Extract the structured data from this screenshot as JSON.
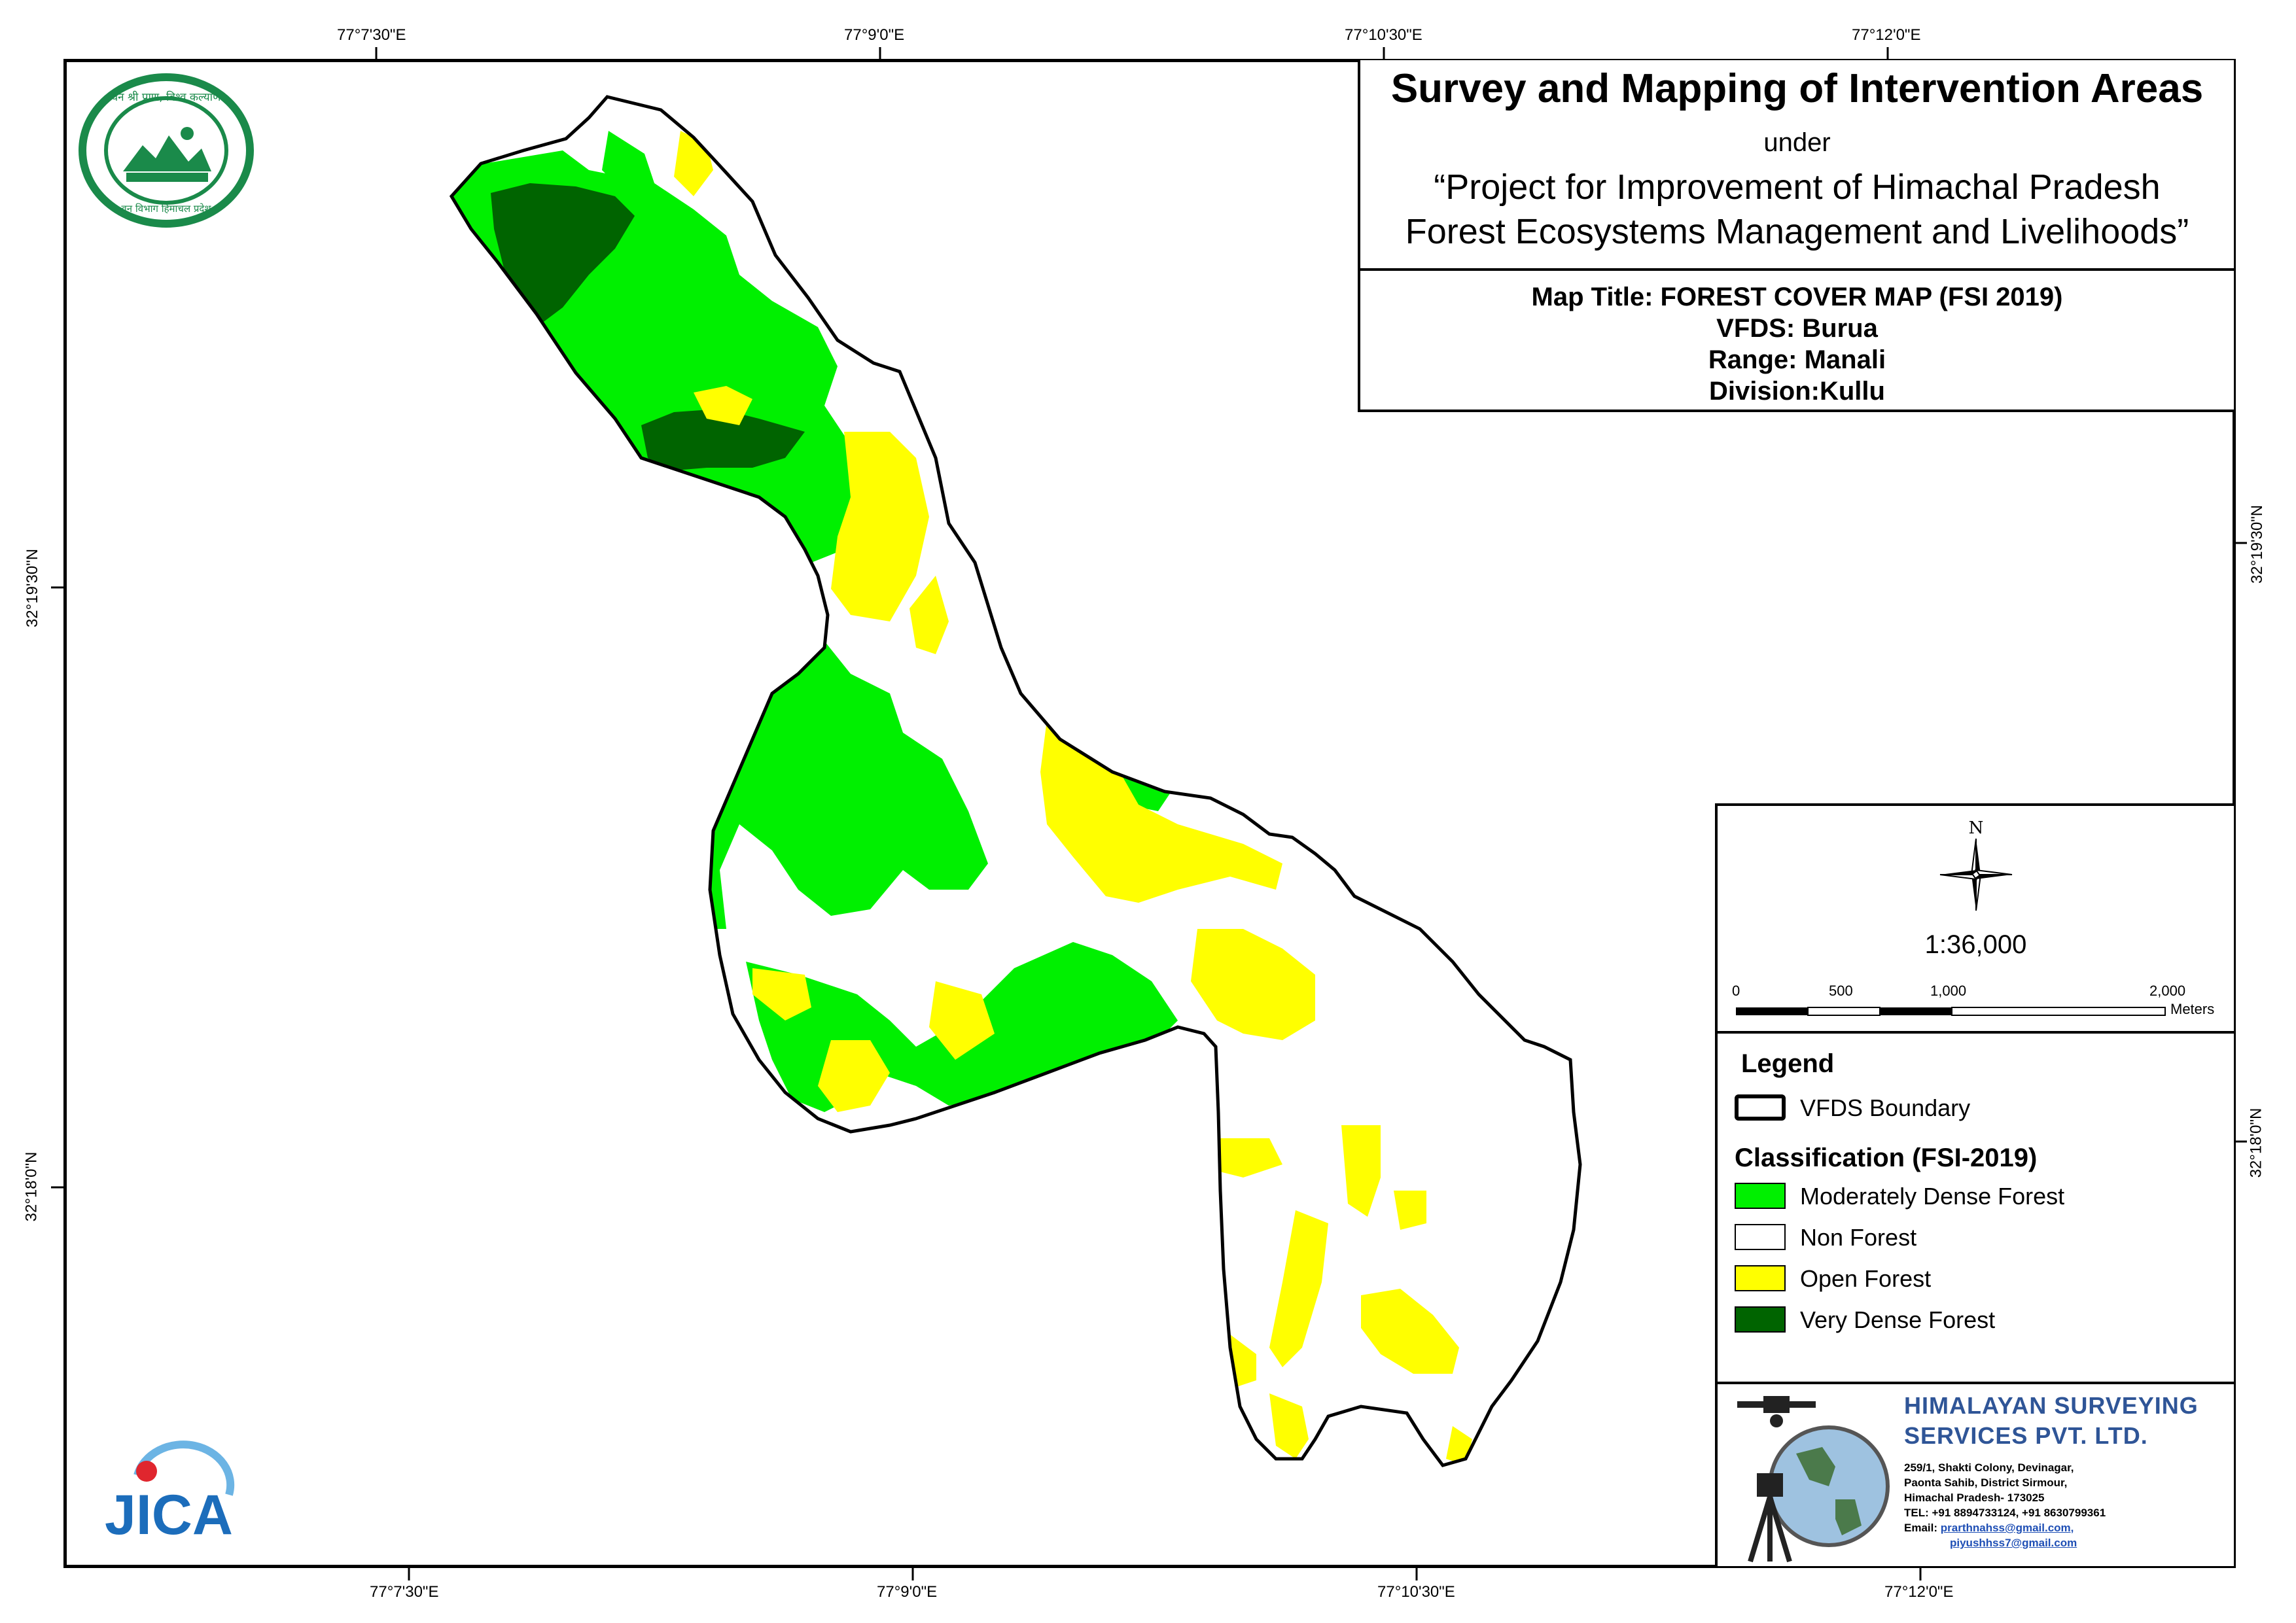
{
  "header": {
    "title": "Survey and Mapping of Intervention Areas",
    "under": "under",
    "project_line1": "“Project for Improvement of Himachal Pradesh",
    "project_line2": "Forest Ecosystems Management and Livelihoods”"
  },
  "map_info": {
    "map_title": "Map Title: FOREST COVER MAP (FSI 2019)",
    "vfds": "VFDS: Burua",
    "range": "Range: Manali",
    "division": "Division:Kullu"
  },
  "graticule": {
    "top": [
      "77°7'30\"E",
      "77°9'0\"E",
      "77°10'30\"E",
      "77°12'0\"E"
    ],
    "bottom": [
      "77°7'30\"E",
      "77°9'0\"E",
      "77°10'30\"E",
      "77°12'0\"E"
    ],
    "left": [
      "32°19'30\"N",
      "32°18'0\"N"
    ],
    "right": [
      "32°19'30\"N",
      "32°18'0\"N"
    ]
  },
  "north_arrow": {
    "label": "N"
  },
  "scale": {
    "ratio": "1:36,000",
    "ticks": [
      "0",
      "500",
      "1,000",
      "2,000"
    ],
    "unit": "Meters"
  },
  "legend": {
    "title": "Legend",
    "boundary_label": "VFDS Boundary",
    "classification_title": "Classification (FSI-2019)",
    "items": [
      {
        "label": "Moderately Dense Forest",
        "color": "#00f000"
      },
      {
        "label": "Non Forest",
        "color": "#ffffff"
      },
      {
        "label": "Open Forest",
        "color": "#ffff00"
      },
      {
        "label": "Very Dense Forest",
        "color": "#006400"
      }
    ]
  },
  "company": {
    "name_line1": "HIMALAYAN SURVEYING",
    "name_line2": "SERVICES PVT. LTD.",
    "address_line1": "259/1, Shakti Colony, Devinagar,",
    "address_line2": "Paonta Sahib, District Sirmour,",
    "address_line3": "Himachal Pradesh- 173025",
    "tel": "TEL: +91 8894733124, +91 8630799361",
    "email_label": "Email:",
    "email1": "prarthnahss@gmail.com,",
    "email2": "piyushhss7@gmail.com"
  },
  "logos": {
    "forest_dept_text": "वन श्री प्राण, विश्व कल्याण",
    "forest_dept_bottom": "वन विभाग हिमाचल प्रदेश",
    "jica": "JICA"
  },
  "colors": {
    "very_dense": "#006400",
    "mod_dense": "#00f000",
    "open": "#ffff00",
    "non_forest": "#ffffff",
    "company_blue": "#2f5597"
  }
}
